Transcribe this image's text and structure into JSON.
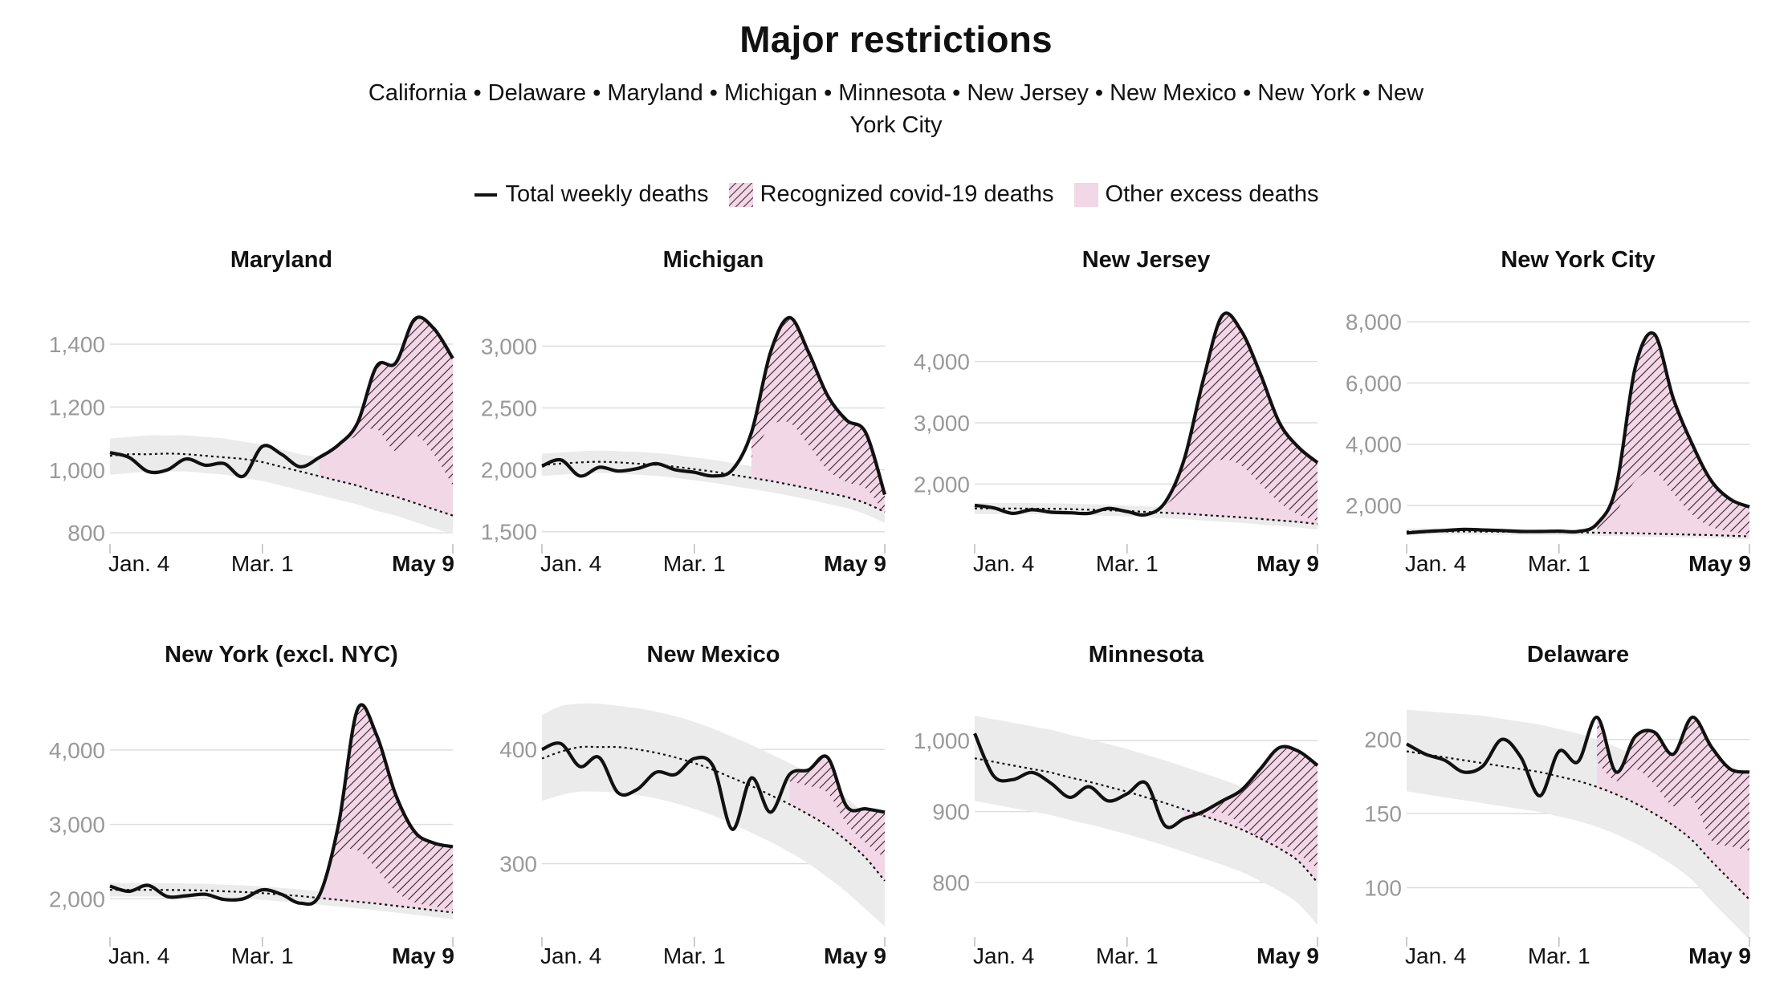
{
  "title": "Major restrictions",
  "subtitle": "California • Delaware • Maryland • Michigan • Minnesota • New Jersey • New Mexico • New York • New York City",
  "legend": {
    "total": "Total weekly deaths",
    "covid": "Recognized covid-19 deaths",
    "other": "Other excess deaths"
  },
  "colors": {
    "line": "#111111",
    "band": "#ebebeb",
    "other": "#f2d7e6",
    "hatch": "#3a1f2e",
    "grid": "#dddddd",
    "tick": "#999999"
  },
  "chart_data": [
    {
      "type": "line",
      "title": "Maryland",
      "x_labels": [
        "Jan. 4",
        "Mar. 1",
        "May 9"
      ],
      "ylim": [
        780,
        1520
      ],
      "y_ticks": [
        800,
        1000,
        1200,
        1400
      ],
      "y_tick_labels": [
        "800",
        "1,000",
        "1,200",
        "1,400"
      ],
      "total": [
        1055,
        1040,
        995,
        1000,
        1035,
        1015,
        1020,
        980,
        1075,
        1050,
        1010,
        1040,
        1080,
        1150,
        1330,
        1340,
        1480,
        1450,
        1355
      ],
      "expected": [
        1045,
        1050,
        1050,
        1052,
        1050,
        1045,
        1040,
        1035,
        1025,
        1010,
        995,
        980,
        965,
        950,
        930,
        915,
        895,
        875,
        855
      ],
      "band_upper": [
        1100,
        1105,
        1110,
        1110,
        1110,
        1105,
        1100,
        1090,
        1080,
        1065,
        1050,
        1040,
        1025,
        1010,
        995,
        980,
        965,
        950,
        935
      ],
      "band_lower": [
        985,
        990,
        995,
        995,
        995,
        990,
        985,
        975,
        965,
        950,
        935,
        920,
        905,
        890,
        870,
        855,
        835,
        815,
        795
      ],
      "covid_lower": [
        null,
        null,
        null,
        null,
        null,
        null,
        null,
        null,
        null,
        null,
        null,
        1040,
        1075,
        1110,
        1130,
        1060,
        1110,
        1050,
        950
      ]
    },
    {
      "type": "line",
      "title": "Michigan",
      "x_labels": [
        "Jan. 4",
        "Mar. 1",
        "May 9"
      ],
      "ylim": [
        1440,
        3320
      ],
      "y_ticks": [
        1500,
        2000,
        2500,
        3000
      ],
      "y_tick_labels": [
        "1,500",
        "2,000",
        "2,500",
        "3,000"
      ],
      "total": [
        2030,
        2080,
        1950,
        2020,
        1990,
        2010,
        2050,
        2000,
        1980,
        1950,
        2000,
        2300,
        2950,
        3230,
        2950,
        2600,
        2400,
        2300,
        1800
      ],
      "expected": [
        2040,
        2050,
        2060,
        2065,
        2060,
        2050,
        2040,
        2025,
        2005,
        1985,
        1960,
        1935,
        1910,
        1880,
        1850,
        1815,
        1780,
        1730,
        1660
      ],
      "band_upper": [
        2130,
        2140,
        2150,
        2155,
        2150,
        2145,
        2135,
        2120,
        2100,
        2080,
        2055,
        2030,
        2005,
        1975,
        1945,
        1910,
        1875,
        1830,
        1770
      ],
      "band_lower": [
        1950,
        1960,
        1970,
        1975,
        1970,
        1960,
        1950,
        1935,
        1915,
        1895,
        1870,
        1845,
        1820,
        1790,
        1760,
        1725,
        1690,
        1640,
        1570
      ],
      "covid_lower": [
        null,
        null,
        null,
        null,
        null,
        null,
        null,
        null,
        null,
        null,
        null,
        2100,
        2350,
        2380,
        2200,
        2000,
        1900,
        1850,
        1650
      ]
    },
    {
      "type": "line",
      "title": "New Jersey",
      "x_labels": [
        "Jan. 4",
        "Mar. 1",
        "May 9"
      ],
      "ylim": [
        1100,
        4900
      ],
      "y_ticks": [
        2000,
        3000,
        4000
      ],
      "y_tick_labels": [
        "2,000",
        "3,000",
        "4,000"
      ],
      "total": [
        1650,
        1610,
        1520,
        1580,
        1540,
        1530,
        1520,
        1600,
        1550,
        1500,
        1700,
        2400,
        3700,
        4750,
        4500,
        3800,
        3000,
        2600,
        2350
      ],
      "expected": [
        1600,
        1600,
        1600,
        1598,
        1595,
        1590,
        1580,
        1570,
        1560,
        1545,
        1530,
        1515,
        1495,
        1475,
        1455,
        1430,
        1405,
        1380,
        1345
      ],
      "band_upper": [
        1690,
        1690,
        1690,
        1688,
        1685,
        1680,
        1670,
        1660,
        1648,
        1635,
        1620,
        1605,
        1585,
        1565,
        1545,
        1520,
        1495,
        1470,
        1440
      ],
      "band_lower": [
        1510,
        1510,
        1510,
        1508,
        1505,
        1500,
        1490,
        1480,
        1470,
        1455,
        1440,
        1425,
        1405,
        1385,
        1365,
        1340,
        1315,
        1290,
        1255
      ],
      "covid_lower": [
        null,
        null,
        null,
        null,
        null,
        null,
        null,
        null,
        null,
        null,
        1650,
        1900,
        2200,
        2400,
        2300,
        2000,
        1700,
        1500,
        1400
      ]
    },
    {
      "type": "line",
      "title": "New York City",
      "x_labels": [
        "Jan. 4",
        "Mar. 1",
        "May 9"
      ],
      "ylim": [
        900,
        8500
      ],
      "y_ticks": [
        2000,
        4000,
        6000,
        8000
      ],
      "y_tick_labels": [
        "2,000",
        "4,000",
        "6,000",
        "8,000"
      ],
      "total": [
        1100,
        1150,
        1180,
        1220,
        1200,
        1180,
        1150,
        1150,
        1160,
        1150,
        1400,
        2600,
        6500,
        7600,
        5500,
        4000,
        2800,
        2200,
        1950
      ],
      "expected": [
        1150,
        1150,
        1150,
        1148,
        1145,
        1142,
        1140,
        1135,
        1130,
        1120,
        1110,
        1100,
        1090,
        1075,
        1060,
        1045,
        1030,
        1010,
        990
      ],
      "band_upper": [
        1250,
        1250,
        1250,
        1248,
        1245,
        1242,
        1240,
        1235,
        1230,
        1220,
        1210,
        1200,
        1190,
        1175,
        1160,
        1145,
        1130,
        1110,
        1090
      ],
      "band_lower": [
        1050,
        1050,
        1050,
        1048,
        1045,
        1042,
        1040,
        1035,
        1030,
        1020,
        1010,
        1000,
        990,
        975,
        960,
        945,
        930,
        910,
        890
      ],
      "covid_lower": [
        null,
        null,
        null,
        null,
        null,
        null,
        null,
        null,
        null,
        null,
        1200,
        1800,
        2800,
        3100,
        2400,
        1700,
        1300,
        1150,
        1050
      ]
    },
    {
      "type": "line",
      "title": "New York (excl. NYC)",
      "x_labels": [
        "Jan. 4",
        "Mar. 1",
        "May 9"
      ],
      "ylim": [
        1550,
        4700
      ],
      "y_ticks": [
        2000,
        3000,
        4000
      ],
      "y_tick_labels": [
        "2,000",
        "3,000",
        "4,000"
      ],
      "total": [
        2170,
        2100,
        2180,
        2030,
        2040,
        2060,
        1990,
        2000,
        2120,
        2060,
        1940,
        2050,
        3000,
        4550,
        4200,
        3400,
        2900,
        2750,
        2700
      ],
      "expected": [
        2120,
        2120,
        2120,
        2118,
        2115,
        2110,
        2100,
        2090,
        2075,
        2055,
        2035,
        2010,
        1985,
        1960,
        1935,
        1905,
        1875,
        1845,
        1815
      ],
      "band_upper": [
        2210,
        2210,
        2210,
        2208,
        2205,
        2200,
        2190,
        2180,
        2165,
        2145,
        2125,
        2100,
        2075,
        2050,
        2025,
        1995,
        1965,
        1935,
        1905
      ],
      "band_lower": [
        2030,
        2030,
        2030,
        2028,
        2025,
        2020,
        2010,
        2000,
        1985,
        1965,
        1945,
        1920,
        1895,
        1870,
        1845,
        1815,
        1785,
        1755,
        1725
      ],
      "covid_lower": [
        null,
        null,
        null,
        null,
        null,
        null,
        null,
        null,
        null,
        null,
        null,
        2100,
        2600,
        2650,
        2400,
        2100,
        1950,
        1900,
        1850
      ]
    },
    {
      "type": "line",
      "title": "New Mexico",
      "x_labels": [
        "Jan. 4",
        "Mar. 1",
        "May 9"
      ],
      "ylim": [
        240,
        445
      ],
      "y_ticks": [
        300,
        400
      ],
      "y_tick_labels": [
        "300",
        "400"
      ],
      "total": [
        400,
        405,
        385,
        393,
        362,
        365,
        380,
        378,
        392,
        385,
        330,
        375,
        345,
        378,
        382,
        393,
        350,
        348,
        345
      ],
      "expected": [
        392,
        398,
        402,
        402,
        402,
        400,
        397,
        393,
        388,
        382,
        375,
        368,
        360,
        352,
        343,
        333,
        320,
        305,
        285
      ],
      "band_upper": [
        430,
        438,
        440,
        440,
        438,
        436,
        433,
        429,
        424,
        418,
        411,
        404,
        396,
        388,
        379,
        369,
        357,
        343,
        325
      ],
      "band_lower": [
        355,
        360,
        363,
        363,
        362,
        360,
        357,
        353,
        348,
        342,
        335,
        327,
        319,
        310,
        300,
        288,
        275,
        260,
        245
      ],
      "covid_lower": [
        null,
        null,
        null,
        null,
        null,
        null,
        null,
        null,
        null,
        null,
        null,
        null,
        null,
        372,
        368,
        362,
        335,
        318,
        305
      ]
    },
    {
      "type": "line",
      "title": "Minnesota",
      "x_labels": [
        "Jan. 4",
        "Mar. 1",
        "May 9"
      ],
      "ylim": [
        730,
        1060
      ],
      "y_ticks": [
        800,
        900,
        1000
      ],
      "y_tick_labels": [
        "800",
        "900",
        "1,000"
      ],
      "total": [
        1010,
        950,
        945,
        955,
        940,
        920,
        935,
        915,
        925,
        940,
        880,
        890,
        900,
        915,
        930,
        960,
        990,
        985,
        965
      ],
      "expected": [
        975,
        970,
        965,
        960,
        955,
        948,
        942,
        935,
        928,
        920,
        912,
        903,
        894,
        885,
        875,
        862,
        848,
        830,
        800
      ],
      "band_upper": [
        1035,
        1030,
        1025,
        1020,
        1015,
        1008,
        1002,
        995,
        988,
        980,
        972,
        963,
        954,
        945,
        935,
        922,
        908,
        890,
        860
      ],
      "band_lower": [
        915,
        910,
        905,
        900,
        895,
        888,
        882,
        875,
        868,
        860,
        852,
        843,
        834,
        825,
        815,
        802,
        788,
        770,
        740
      ],
      "covid_lower": [
        null,
        null,
        null,
        null,
        null,
        null,
        null,
        null,
        null,
        null,
        null,
        888,
        895,
        898,
        882,
        862,
        856,
        840,
        820
      ]
    },
    {
      "type": "line",
      "title": "Delaware",
      "x_labels": [
        "Jan. 4",
        "Mar. 1",
        "May 9"
      ],
      "ylim": [
        70,
        228
      ],
      "y_ticks": [
        100,
        150,
        200
      ],
      "y_tick_labels": [
        "100",
        "150",
        "200"
      ],
      "total": [
        197,
        190,
        186,
        178,
        182,
        200,
        188,
        162,
        192,
        185,
        215,
        178,
        202,
        205,
        190,
        215,
        195,
        180,
        178
      ],
      "expected": [
        192,
        190,
        188,
        186,
        184,
        182,
        180,
        178,
        175,
        172,
        168,
        163,
        157,
        150,
        142,
        132,
        118,
        105,
        92
      ],
      "band_upper": [
        220,
        219,
        218,
        217,
        216,
        214,
        212,
        210,
        207,
        204,
        200,
        195,
        189,
        182,
        174,
        164,
        150,
        137,
        124
      ],
      "band_lower": [
        165,
        163,
        161,
        159,
        157,
        155,
        153,
        151,
        148,
        145,
        141,
        136,
        130,
        123,
        115,
        105,
        91,
        78,
        65
      ],
      "covid_lower": [
        null,
        null,
        null,
        null,
        null,
        null,
        null,
        null,
        null,
        null,
        185,
        172,
        180,
        170,
        155,
        160,
        132,
        128,
        125
      ]
    }
  ]
}
